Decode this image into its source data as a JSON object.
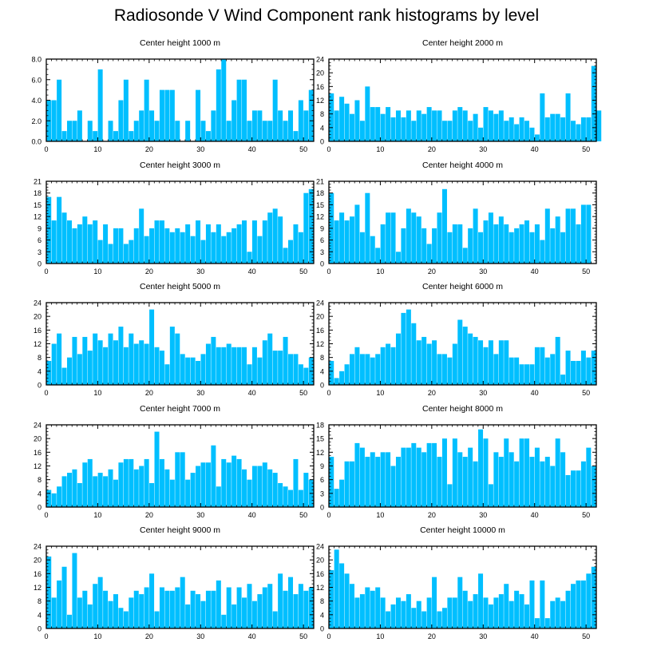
{
  "title": "Radiosonde V Wind Component rank histograms by level",
  "colors": {
    "bar": "#00BFFF",
    "axis": "#000000"
  },
  "chart_data": [
    {
      "type": "bar",
      "title": "Center height 1000 m",
      "xlim": [
        0,
        52
      ],
      "ylim": [
        0,
        8
      ],
      "yticks": [
        0,
        2,
        4,
        6,
        8
      ],
      "ytick_labels": [
        "0.0",
        "2.0",
        "4.0",
        "6.0",
        "8.0"
      ],
      "xticks": [
        0,
        10,
        20,
        30,
        40,
        50
      ],
      "values": [
        4,
        4,
        6,
        1,
        2,
        2,
        3,
        0,
        2,
        1,
        7,
        0,
        2,
        1,
        4,
        6,
        1,
        2,
        3,
        6,
        3,
        2,
        5,
        5,
        5,
        2,
        0,
        2,
        0,
        5,
        2,
        1,
        3,
        7,
        8,
        2,
        4,
        6,
        6,
        2,
        3,
        3,
        2,
        2,
        6,
        3,
        2,
        3,
        1,
        4,
        3,
        5
      ]
    },
    {
      "type": "bar",
      "title": "Center height 2000 m",
      "xlim": [
        0,
        52
      ],
      "ylim": [
        0,
        24
      ],
      "yticks": [
        0,
        4,
        8,
        12,
        16,
        20,
        24
      ],
      "ytick_labels": [
        "0",
        "4",
        "8",
        "12",
        "16",
        "20",
        "24"
      ],
      "xticks": [
        0,
        10,
        20,
        30,
        40,
        50
      ],
      "values": [
        14,
        9,
        13,
        11,
        8,
        12,
        6,
        16,
        10,
        10,
        8,
        10,
        7,
        9,
        7,
        9,
        6,
        9,
        8,
        10,
        9,
        9,
        6,
        6,
        9,
        10,
        9,
        6,
        8,
        4,
        10,
        9,
        8,
        9,
        6,
        7,
        5,
        7,
        6,
        4,
        2,
        14,
        7,
        8,
        8,
        7,
        14,
        6,
        5,
        7,
        7,
        22,
        9
      ]
    },
    {
      "type": "bar",
      "title": "Center height 3000 m",
      "xlim": [
        0,
        52
      ],
      "ylim": [
        0,
        21
      ],
      "yticks": [
        0,
        3,
        6,
        9,
        12,
        15,
        18,
        21
      ],
      "ytick_labels": [
        "0",
        "3",
        "6",
        "9",
        "12",
        "15",
        "18",
        "21"
      ],
      "xticks": [
        0,
        10,
        20,
        30,
        40,
        50
      ],
      "values": [
        17,
        11,
        17,
        13,
        11,
        9,
        10,
        12,
        10,
        11,
        6,
        10,
        5,
        9,
        9,
        5,
        6,
        9,
        14,
        7,
        9,
        11,
        11,
        9,
        8,
        9,
        8,
        10,
        7,
        11,
        6,
        10,
        8,
        10,
        7,
        8,
        9,
        10,
        11,
        3,
        11,
        7,
        11,
        13,
        14,
        12,
        4,
        6,
        10,
        8,
        18,
        19
      ]
    },
    {
      "type": "bar",
      "title": "Center height 4000 m",
      "xlim": [
        0,
        52
      ],
      "ylim": [
        0,
        21
      ],
      "yticks": [
        0,
        3,
        6,
        9,
        12,
        15,
        18,
        21
      ],
      "ytick_labels": [
        "0",
        "3",
        "6",
        "9",
        "12",
        "15",
        "18",
        "21"
      ],
      "xticks": [
        0,
        10,
        20,
        30,
        40,
        50
      ],
      "values": [
        18,
        11,
        13,
        11,
        12,
        15,
        8,
        18,
        7,
        4,
        10,
        13,
        13,
        3,
        9,
        14,
        13,
        12,
        9,
        5,
        9,
        13,
        19,
        8,
        10,
        10,
        4,
        9,
        14,
        8,
        11,
        13,
        10,
        12,
        10,
        8,
        9,
        10,
        11,
        8,
        10,
        6,
        14,
        9,
        12,
        8,
        14,
        14,
        10,
        15,
        15
      ]
    },
    {
      "type": "bar",
      "title": "Center height 5000 m",
      "xlim": [
        0,
        52
      ],
      "ylim": [
        0,
        24
      ],
      "yticks": [
        0,
        4,
        8,
        12,
        16,
        20,
        24
      ],
      "ytick_labels": [
        "0",
        "4",
        "8",
        "12",
        "16",
        "20",
        "24"
      ],
      "xticks": [
        0,
        10,
        20,
        30,
        40,
        50
      ],
      "values": [
        7,
        12,
        15,
        5,
        8,
        14,
        9,
        14,
        10,
        15,
        13,
        11,
        15,
        13,
        17,
        11,
        15,
        12,
        13,
        12,
        22,
        11,
        10,
        6,
        17,
        15,
        9,
        8,
        8,
        7,
        9,
        12,
        14,
        11,
        11,
        12,
        11,
        11,
        11,
        6,
        11,
        8,
        13,
        15,
        10,
        10,
        14,
        9,
        9,
        6,
        5,
        8
      ]
    },
    {
      "type": "bar",
      "title": "Center height 6000 m",
      "xlim": [
        0,
        52
      ],
      "ylim": [
        0,
        24
      ],
      "yticks": [
        0,
        4,
        8,
        12,
        16,
        20,
        24
      ],
      "ytick_labels": [
        "0",
        "4",
        "8",
        "12",
        "16",
        "20",
        "24"
      ],
      "xticks": [
        0,
        10,
        20,
        30,
        40,
        50
      ],
      "values": [
        7,
        2,
        4,
        6,
        9,
        11,
        9,
        9,
        8,
        9,
        11,
        12,
        11,
        15,
        21,
        22,
        18,
        13,
        14,
        12,
        13,
        9,
        9,
        8,
        12,
        19,
        17,
        15,
        14,
        13,
        11,
        13,
        9,
        13,
        13,
        8,
        8,
        6,
        6,
        6,
        11,
        11,
        8,
        9,
        14,
        3,
        10,
        7,
        7,
        10,
        8,
        10
      ]
    },
    {
      "type": "bar",
      "title": "Center height 7000 m",
      "xlim": [
        0,
        52
      ],
      "ylim": [
        0,
        24
      ],
      "yticks": [
        0,
        4,
        8,
        12,
        16,
        20,
        24
      ],
      "ytick_labels": [
        "0",
        "4",
        "8",
        "12",
        "16",
        "20",
        "24"
      ],
      "xticks": [
        0,
        10,
        20,
        30,
        40,
        50
      ],
      "values": [
        5,
        4,
        6,
        9,
        10,
        11,
        7,
        13,
        14,
        9,
        10,
        9,
        11,
        8,
        13,
        14,
        14,
        11,
        12,
        14,
        7,
        22,
        14,
        11,
        8,
        16,
        16,
        8,
        10,
        12,
        13,
        13,
        18,
        6,
        14,
        13,
        15,
        14,
        11,
        8,
        12,
        12,
        13,
        11,
        10,
        7,
        6,
        5,
        14,
        5,
        10,
        8
      ]
    },
    {
      "type": "bar",
      "title": "Center height 8000 m",
      "xlim": [
        0,
        52
      ],
      "ylim": [
        0,
        18
      ],
      "yticks": [
        0,
        3,
        6,
        9,
        12,
        15,
        18
      ],
      "ytick_labels": [
        "0",
        "3",
        "6",
        "9",
        "12",
        "15",
        "18"
      ],
      "xticks": [
        0,
        10,
        20,
        30,
        40,
        50
      ],
      "values": [
        11,
        4,
        6,
        10,
        10,
        14,
        13,
        11,
        12,
        11,
        12,
        12,
        9,
        11,
        13,
        13,
        14,
        13,
        12,
        14,
        14,
        11,
        15,
        5,
        15,
        12,
        11,
        13,
        10,
        17,
        15,
        5,
        12,
        11,
        15,
        12,
        10,
        15,
        15,
        11,
        13,
        10,
        11,
        9,
        15,
        12,
        7,
        8,
        8,
        10,
        13,
        9
      ]
    },
    {
      "type": "bar",
      "title": "Center height 9000 m",
      "xlim": [
        0,
        52
      ],
      "ylim": [
        0,
        24
      ],
      "yticks": [
        0,
        4,
        8,
        12,
        16,
        20,
        24
      ],
      "ytick_labels": [
        "0",
        "4",
        "8",
        "12",
        "16",
        "20",
        "24"
      ],
      "xticks": [
        0,
        10,
        20,
        30,
        40,
        50
      ],
      "values": [
        21,
        9,
        14,
        18,
        4,
        22,
        9,
        11,
        7,
        13,
        15,
        11,
        8,
        10,
        6,
        5,
        9,
        11,
        10,
        12,
        16,
        5,
        12,
        11,
        11,
        12,
        15,
        7,
        11,
        10,
        8,
        11,
        11,
        14,
        4,
        12,
        7,
        12,
        9,
        13,
        8,
        10,
        12,
        13,
        5,
        16,
        11,
        15,
        10,
        13,
        11,
        12
      ]
    },
    {
      "type": "bar",
      "title": "Center height 10000 m",
      "xlim": [
        0,
        52
      ],
      "ylim": [
        0,
        24
      ],
      "yticks": [
        0,
        4,
        8,
        12,
        16,
        20,
        24
      ],
      "ytick_labels": [
        "0",
        "4",
        "8",
        "12",
        "16",
        "20",
        "24"
      ],
      "xticks": [
        0,
        10,
        20,
        30,
        40,
        50
      ],
      "values": [
        17,
        23,
        19,
        16,
        13,
        9,
        10,
        12,
        11,
        12,
        9,
        5,
        7,
        9,
        8,
        10,
        6,
        8,
        5,
        9,
        15,
        5,
        6,
        9,
        9,
        15,
        11,
        8,
        10,
        16,
        9,
        7,
        9,
        10,
        13,
        8,
        11,
        10,
        7,
        14,
        3,
        14,
        3,
        8,
        9,
        8,
        11,
        13,
        14,
        14,
        16,
        18
      ]
    }
  ]
}
